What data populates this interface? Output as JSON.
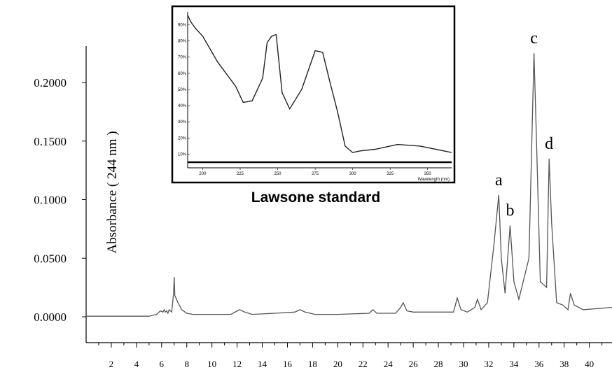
{
  "chart_data": [
    {
      "type": "line",
      "xlabel": "",
      "ylabel": "Absorbance ( 244 nm )",
      "xlim": [
        0,
        41.8
      ],
      "ylim": [
        -0.01,
        0.23
      ],
      "x_ticks": [
        2,
        4,
        6,
        8,
        10,
        12,
        14,
        16,
        18,
        20,
        22,
        24,
        26,
        28,
        30,
        32,
        34,
        36,
        38,
        40
      ],
      "y_ticks": [
        "0.0000",
        "0.0500",
        "0.1000",
        "0.1500",
        "0.2000"
      ],
      "grid": false,
      "series": [
        {
          "x": [
            0,
            5.0,
            5.6,
            5.9,
            6.1,
            6.2,
            6.3,
            6.4,
            6.5,
            6.6,
            6.8,
            6.95,
            7.0,
            7.05,
            7.1,
            7.3,
            7.6,
            8.0,
            8.5,
            9.5,
            11.5,
            12.2,
            12.6,
            13.2,
            15.0,
            16.6,
            17.0,
            17.4,
            18.2,
            20.0,
            22.5,
            22.8,
            23.1,
            24.6,
            25.0,
            25.2,
            25.5,
            26.0,
            27.0,
            29.2,
            29.5,
            29.8,
            30.3,
            30.9,
            31.1,
            31.4,
            31.9,
            32.4,
            32.8,
            33.0,
            33.3,
            33.7,
            34.0,
            34.4,
            35.2,
            35.6,
            35.8,
            36.1,
            36.6,
            36.8,
            37.0,
            37.4,
            37.9,
            38.3,
            38.5,
            38.8,
            39.5,
            41.8
          ],
          "y": [
            0.0005,
            0.0005,
            0.002,
            0.005,
            0.004,
            0.006,
            0.004,
            0.005,
            0.003,
            0.006,
            0.004,
            0.02,
            0.034,
            0.018,
            0.017,
            0.012,
            0.006,
            0.003,
            0.002,
            0.002,
            0.002,
            0.006,
            0.004,
            0.002,
            0.003,
            0.004,
            0.006,
            0.004,
            0.002,
            0.002,
            0.003,
            0.006,
            0.003,
            0.003,
            0.008,
            0.012,
            0.005,
            0.004,
            0.004,
            0.004,
            0.016,
            0.006,
            0.004,
            0.008,
            0.015,
            0.006,
            0.012,
            0.06,
            0.104,
            0.05,
            0.02,
            0.078,
            0.03,
            0.015,
            0.05,
            0.225,
            0.15,
            0.03,
            0.025,
            0.135,
            0.08,
            0.012,
            0.01,
            0.006,
            0.02,
            0.01,
            0.006,
            0.008
          ]
        }
      ],
      "annotations": [
        {
          "text": "a",
          "x": 32.8,
          "y": 0.104
        },
        {
          "text": "b",
          "x": 33.7,
          "y": 0.078
        },
        {
          "text": "c",
          "x": 35.6,
          "y": 0.225
        },
        {
          "text": "d",
          "x": 36.8,
          "y": 0.135
        }
      ]
    },
    {
      "type": "line",
      "title": "Lawsone standard",
      "xlabel": "Wavelength (nm)",
      "ylabel": "",
      "xlim": [
        190,
        366
      ],
      "ylim": [
        5,
        98
      ],
      "x_ticks": [
        "200",
        "225",
        "250",
        "275",
        "300",
        "325",
        "350"
      ],
      "y_ticks": [
        "10%",
        "20%",
        "30%",
        "40%",
        "50%",
        "60%",
        "70%",
        "80%",
        "90%"
      ],
      "grid": false,
      "series": [
        {
          "x": [
            190,
            192,
            195,
            200,
            210,
            222,
            227,
            233,
            240,
            243,
            246,
            249,
            253,
            258,
            266,
            275,
            280,
            285,
            290,
            295,
            300,
            305,
            315,
            330,
            345,
            366
          ],
          "y": [
            96,
            92,
            88,
            83,
            67,
            52,
            42,
            43,
            57,
            79,
            83,
            84,
            48,
            38,
            50,
            74,
            73,
            54,
            36,
            15,
            11,
            12,
            13,
            16,
            15,
            11
          ]
        }
      ]
    }
  ]
}
